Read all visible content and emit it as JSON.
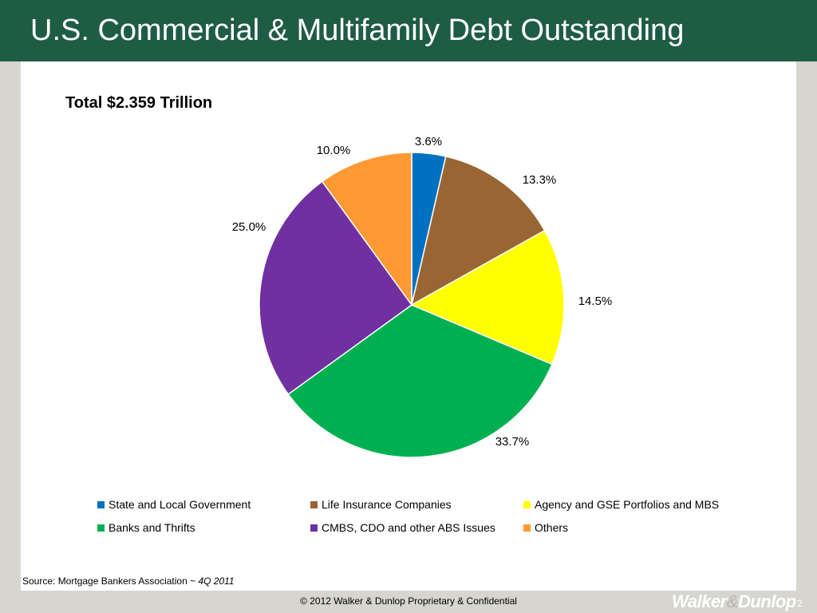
{
  "title": "U.S. Commercial & Multifamily Debt Outstanding",
  "total_label": "Total $2.359 Trillion",
  "chart_data": {
    "type": "pie",
    "title": "Total $2.359 Trillion",
    "slices": [
      {
        "name": "State and Local Government",
        "value": 3.6,
        "label": "3.6%",
        "color": "#0070c0"
      },
      {
        "name": "Life Insurance Companies",
        "value": 13.3,
        "label": "13.3%",
        "color": "#996633"
      },
      {
        "name": "Agency and GSE Portfolios and MBS",
        "value": 14.5,
        "label": "14.5%",
        "color": "#ffff00"
      },
      {
        "name": "Banks and Thrifts",
        "value": 33.7,
        "label": "33.7%",
        "color": "#00b050"
      },
      {
        "name": "CMBS, CDO and other ABS Issues",
        "value": 25.0,
        "label": "25.0%",
        "color": "#7030a0"
      },
      {
        "name": "Others",
        "value": 10.0,
        "label": "10.0%",
        "color": "#ff9933"
      }
    ],
    "legend_position": "bottom"
  },
  "source": {
    "prefix": "Source: Mortgage Bankers Association ~ ",
    "period": "4Q 2011"
  },
  "footer": {
    "copyright": "© 2012 Walker & Dunlop Proprietary & Confidential",
    "page_number": "2"
  },
  "logo": {
    "part1": "Walker",
    "amp": "&",
    "part2": "Dunlop"
  }
}
